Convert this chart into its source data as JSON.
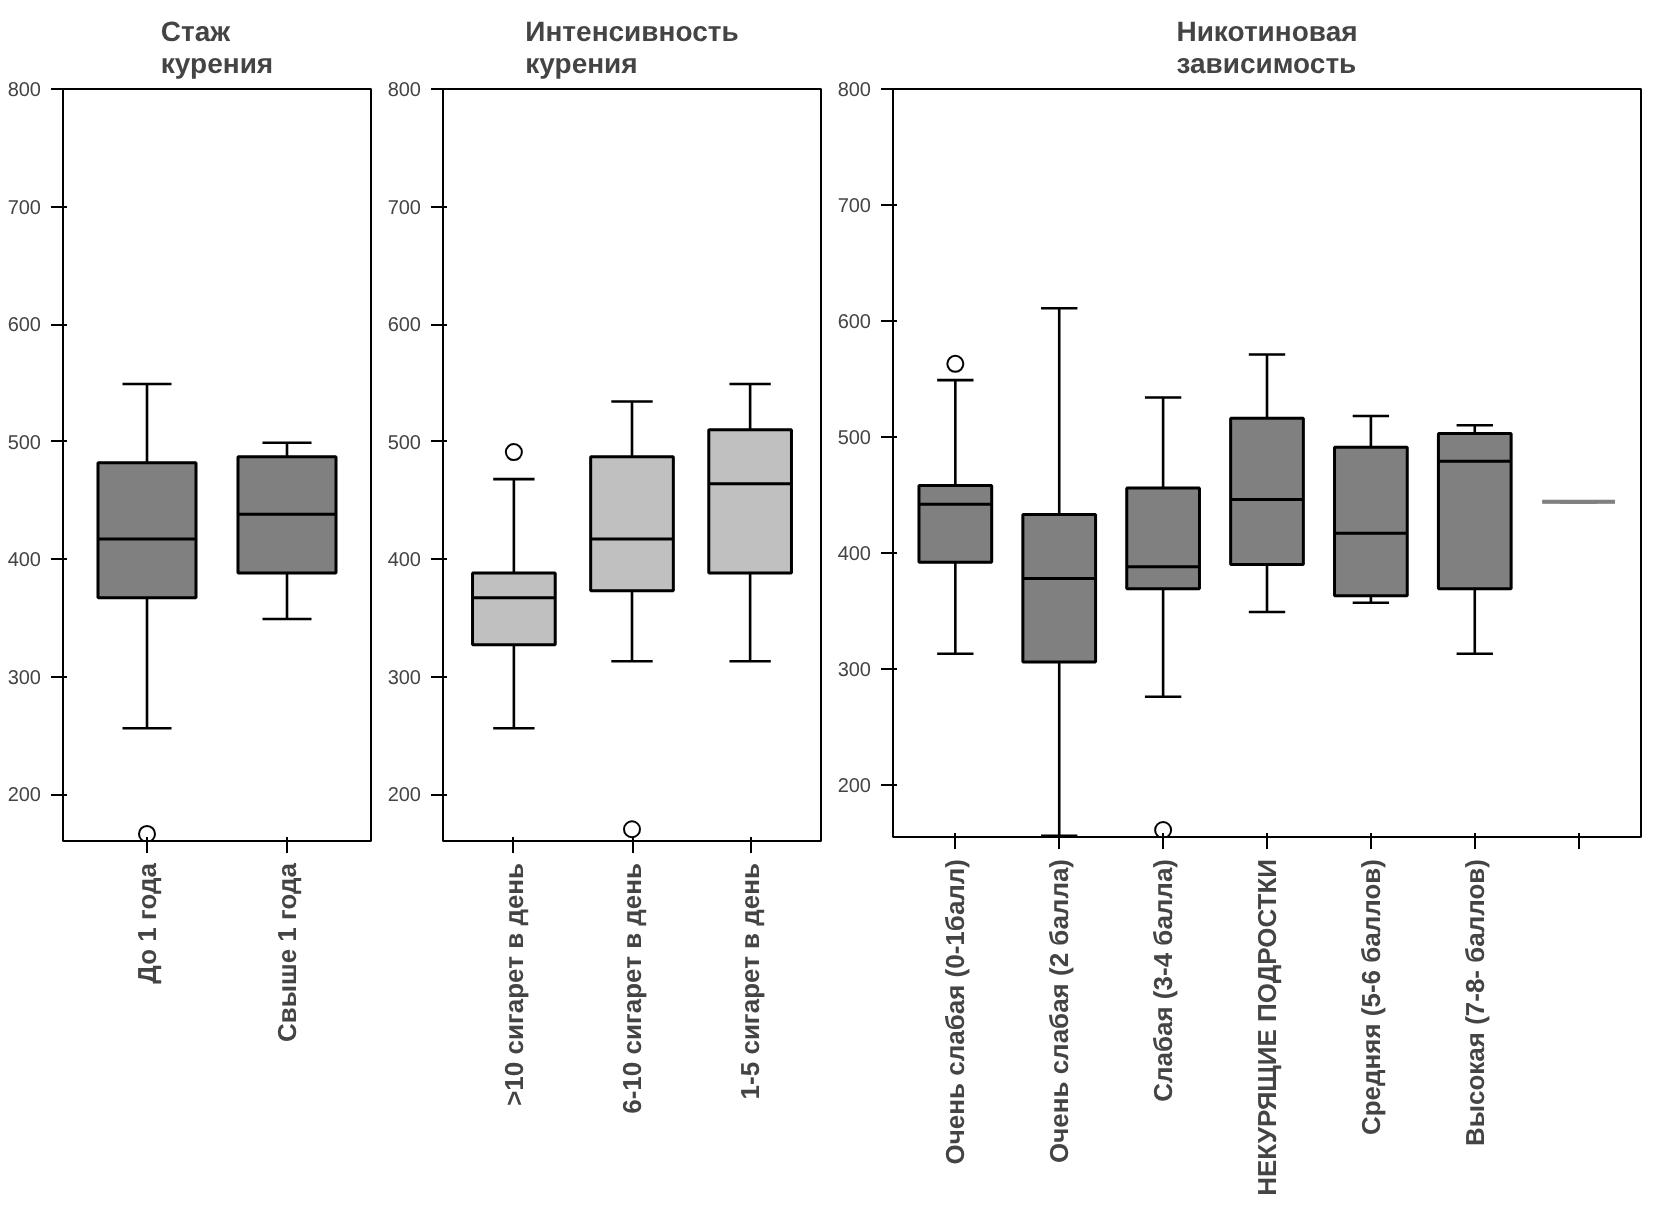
{
  "chart_data": [
    {
      "type": "box",
      "title": "Стаж\nкурения",
      "categories": [
        "До 1 года",
        "Свыше 1 года"
      ],
      "color": "#808080",
      "ylim": [
        160,
        800
      ],
      "yticks": [
        200,
        300,
        400,
        500,
        600,
        700,
        800
      ],
      "grid": false,
      "boxes": [
        {
          "low": 256,
          "q1": 367,
          "median": 417,
          "q3": 482,
          "high": 549,
          "outliers": [
            166
          ]
        },
        {
          "low": 349,
          "q1": 388,
          "median": 438,
          "q3": 487,
          "high": 499
        }
      ]
    },
    {
      "type": "box",
      "title": "Интенсивность\nкурения",
      "categories": [
        ">10 сигарет в день",
        "6-10 сигарет в день",
        "1-5 сигарет в день"
      ],
      "color": "#c0c0c0",
      "ylim": [
        160,
        800
      ],
      "yticks": [
        200,
        300,
        400,
        500,
        600,
        700,
        800
      ],
      "grid": false,
      "boxes": [
        {
          "low": 256,
          "q1": 327,
          "median": 367,
          "q3": 388,
          "high": 468,
          "outliers": [
            491
          ]
        },
        {
          "low": 313,
          "q1": 373,
          "median": 417,
          "q3": 487,
          "high": 534,
          "outliers": [
            170
          ]
        },
        {
          "low": 313,
          "q1": 388,
          "median": 464,
          "q3": 510,
          "high": 549
        }
      ]
    },
    {
      "type": "box",
      "title": "Никотиновая\nзависимость",
      "categories": [
        "Очень слабая (0-1балл)",
        "Очень слабая (2 балла)",
        "Слабая (3-4 балла)",
        "НЕКУРЯЩИЕ ПОДРОСТКИ",
        "Средняя (5-6 баллов)",
        "Высокая (7-8- баллов)",
        null
      ],
      "color": "#808080",
      "ylim": [
        155,
        800
      ],
      "yticks": [
        200,
        300,
        400,
        500,
        600,
        700,
        800
      ],
      "grid": false,
      "boxes": [
        {
          "low": 313,
          "q1": 392,
          "median": 442,
          "q3": 458,
          "high": 549,
          "outliers": [
            563
          ]
        },
        {
          "low": 156,
          "q1": 306,
          "median": 378,
          "q3": 433,
          "high": 611
        },
        {
          "low": 276,
          "q1": 369,
          "median": 388,
          "q3": 456,
          "high": 534,
          "outliers": [
            161
          ]
        },
        {
          "low": 349,
          "q1": 390,
          "median": 446,
          "q3": 516,
          "high": 571
        },
        {
          "low": 357,
          "q1": 363,
          "median": 417,
          "q3": 491,
          "high": 518
        },
        {
          "low": 313,
          "q1": 369,
          "median": 479,
          "q3": 503,
          "high": 510
        },
        {
          "low": 444,
          "q1": 444,
          "median": 444,
          "q3": 444,
          "high": 444
        }
      ]
    }
  ]
}
